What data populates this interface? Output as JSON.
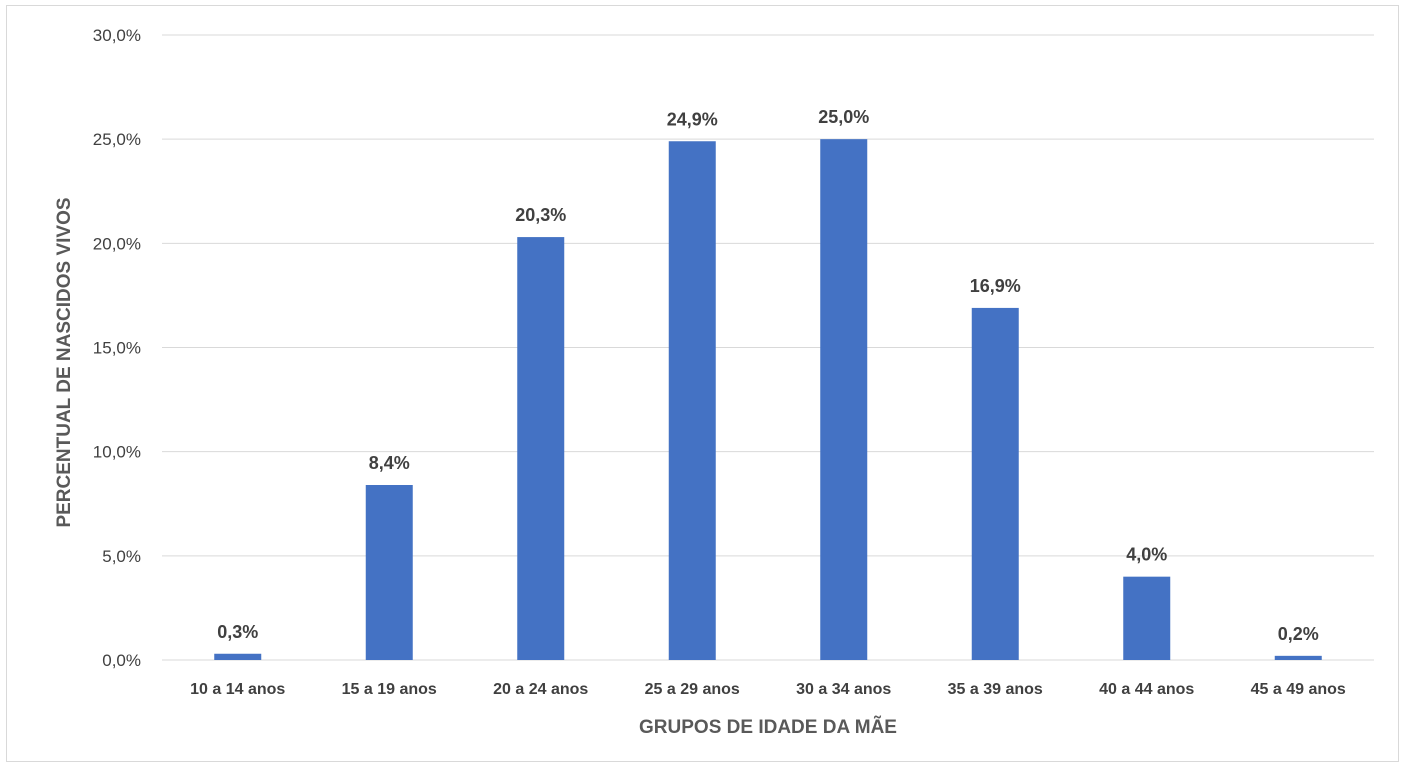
{
  "chart_data": {
    "type": "bar",
    "title": "",
    "xlabel": "GRUPOS DE IDADE DA MÃE",
    "ylabel": "PERCENTUAL DE NASCIDOS VIVOS",
    "categories": [
      "10 a 14 anos",
      "15 a 19 anos",
      "20 a 24 anos",
      "25 a 29 anos",
      "30 a 34 anos",
      "35 a 39 anos",
      "40 a 44 anos",
      "45 a 49 anos"
    ],
    "values": [
      0.3,
      8.4,
      20.3,
      24.9,
      25.0,
      16.9,
      4.0,
      0.2
    ],
    "value_labels": [
      "0,3%",
      "8,4%",
      "20,3%",
      "24,9%",
      "25,0%",
      "16,9%",
      "4,0%",
      "0,2%"
    ],
    "ylim": [
      0,
      30
    ],
    "yticks": [
      0,
      5,
      10,
      15,
      20,
      25,
      30
    ],
    "ytick_labels": [
      "0,0%",
      "5,0%",
      "10,0%",
      "15,0%",
      "20,0%",
      "25,0%",
      "30,0%"
    ],
    "grid": true,
    "legend": "none",
    "bar_color": "#4472c4",
    "grid_color": "#d9d9d9"
  }
}
